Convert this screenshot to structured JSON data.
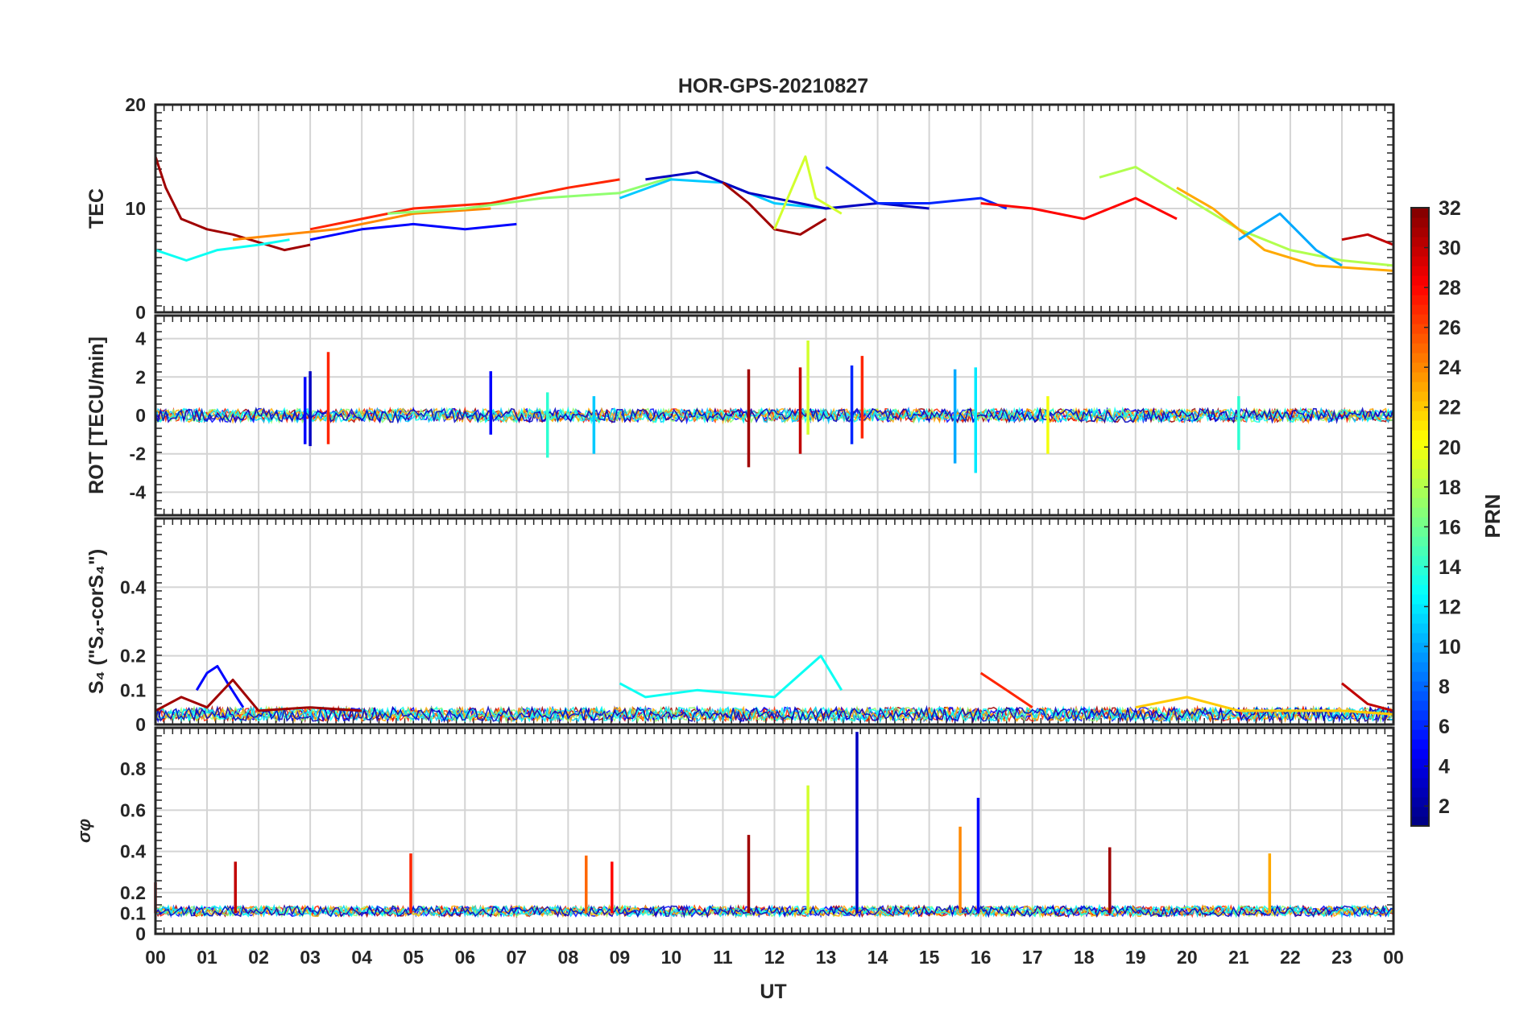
{
  "chart_data": {
    "type": "line",
    "title": "HOR-GPS-20210827",
    "xlabel": "UT",
    "x_tick_labels": [
      "00",
      "01",
      "02",
      "03",
      "04",
      "05",
      "06",
      "07",
      "08",
      "09",
      "10",
      "11",
      "12",
      "13",
      "14",
      "15",
      "16",
      "17",
      "18",
      "19",
      "20",
      "21",
      "22",
      "23",
      "00"
    ],
    "xlim": [
      0,
      24
    ],
    "panels": [
      {
        "id": "tec",
        "ylabel": "TEC",
        "ylim": [
          0,
          20
        ],
        "yticks": [
          0,
          10,
          20
        ],
        "ytick_labels": [
          "0",
          "10",
          "20"
        ],
        "series": [
          {
            "name": "PRN 31",
            "prn": 31,
            "points": [
              [
                0.0,
                15
              ],
              [
                0.2,
                12
              ],
              [
                0.5,
                9
              ],
              [
                1.0,
                8
              ],
              [
                1.5,
                7.5
              ],
              [
                2.5,
                6
              ],
              [
                3.0,
                6.5
              ]
            ]
          },
          {
            "name": "PRN 24",
            "prn": 24,
            "points": [
              [
                1.5,
                7
              ],
              [
                2.5,
                7.5
              ],
              [
                3.5,
                8
              ],
              [
                5.0,
                9.5
              ],
              [
                6.5,
                10
              ]
            ]
          },
          {
            "name": "PRN 13",
            "prn": 13,
            "points": [
              [
                0.0,
                6
              ],
              [
                0.6,
                5
              ],
              [
                1.2,
                6
              ],
              [
                2.0,
                6.5
              ],
              [
                2.6,
                7
              ]
            ]
          },
          {
            "name": "PRN 5",
            "prn": 5,
            "points": [
              [
                3.0,
                7
              ],
              [
                4.0,
                8
              ],
              [
                5.0,
                8.5
              ],
              [
                6.0,
                8
              ],
              [
                7.0,
                8.5
              ]
            ]
          },
          {
            "name": "PRN 27",
            "prn": 27,
            "points": [
              [
                3.0,
                8
              ],
              [
                4.0,
                9
              ],
              [
                5.0,
                10
              ],
              [
                6.5,
                10.5
              ],
              [
                8.0,
                12
              ],
              [
                9.0,
                12.8
              ]
            ]
          },
          {
            "name": "PRN 17",
            "prn": 17,
            "points": [
              [
                4.5,
                9.5
              ],
              [
                6.0,
                10
              ],
              [
                7.5,
                11
              ],
              [
                9.0,
                11.5
              ],
              [
                10.0,
                13
              ]
            ]
          },
          {
            "name": "PRN 11",
            "prn": 11,
            "points": [
              [
                9.0,
                11
              ],
              [
                10.0,
                12.8
              ],
              [
                11.0,
                12.5
              ],
              [
                12.0,
                10.5
              ],
              [
                13.0,
                10
              ]
            ]
          },
          {
            "name": "PRN 3",
            "prn": 3,
            "points": [
              [
                9.5,
                12.8
              ],
              [
                10.5,
                13.5
              ],
              [
                11.5,
                11.5
              ],
              [
                13.0,
                10
              ],
              [
                14.0,
                10.5
              ],
              [
                15.0,
                10
              ]
            ]
          },
          {
            "name": "PRN 31",
            "prn": 31,
            "points": [
              [
                11.0,
                12.5
              ],
              [
                11.5,
                10.5
              ],
              [
                12.0,
                8
              ],
              [
                12.5,
                7.5
              ],
              [
                13.0,
                9
              ]
            ]
          },
          {
            "name": "PRN 19",
            "prn": 19,
            "points": [
              [
                12.0,
                8
              ],
              [
                12.6,
                15
              ],
              [
                12.8,
                11
              ],
              [
                13.3,
                9.5
              ]
            ]
          },
          {
            "name": "PRN 6",
            "prn": 6,
            "points": [
              [
                13.0,
                14
              ],
              [
                14.0,
                10.5
              ],
              [
                15.0,
                10.5
              ],
              [
                16.0,
                11
              ],
              [
                16.5,
                10
              ]
            ]
          },
          {
            "name": "PRN 28",
            "prn": 28,
            "points": [
              [
                16.0,
                10.5
              ],
              [
                17.0,
                10
              ],
              [
                18.0,
                9
              ],
              [
                19.0,
                11
              ],
              [
                19.8,
                9
              ]
            ]
          },
          {
            "name": "PRN 18",
            "prn": 18,
            "points": [
              [
                18.3,
                13
              ],
              [
                19.0,
                14
              ],
              [
                20.0,
                11
              ],
              [
                21.0,
                8
              ],
              [
                22.0,
                6
              ],
              [
                23.0,
                5
              ],
              [
                24.0,
                4.5
              ]
            ]
          },
          {
            "name": "PRN 23",
            "prn": 23,
            "points": [
              [
                19.8,
                12
              ],
              [
                20.5,
                10
              ],
              [
                21.5,
                6
              ],
              [
                22.5,
                4.5
              ],
              [
                24.0,
                4
              ]
            ]
          },
          {
            "name": "PRN 10",
            "prn": 10,
            "points": [
              [
                21.0,
                7
              ],
              [
                21.8,
                9.5
              ],
              [
                22.5,
                6
              ],
              [
                23.0,
                4.5
              ]
            ]
          },
          {
            "name": "PRN 30",
            "prn": 30,
            "points": [
              [
                23.0,
                7
              ],
              [
                23.5,
                7.5
              ],
              [
                24.0,
                6.5
              ]
            ]
          }
        ]
      },
      {
        "id": "rot",
        "ylabel": "ROT [TECU/min]",
        "ylim": [
          -5.2,
          5.2
        ],
        "yticks": [
          -4,
          -2,
          0,
          2,
          4
        ],
        "ytick_labels": [
          "-4",
          "-2",
          "0",
          "2",
          "4"
        ],
        "spikes": [
          {
            "x": 2.9,
            "low": -1.5,
            "high": 2.0,
            "prn": 5
          },
          {
            "x": 3.0,
            "low": -1.6,
            "high": 2.3,
            "prn": 3
          },
          {
            "x": 3.35,
            "low": -1.5,
            "high": 3.3,
            "prn": 27
          },
          {
            "x": 6.5,
            "low": -1.0,
            "high": 2.3,
            "prn": 5
          },
          {
            "x": 7.6,
            "low": -2.2,
            "high": 1.2,
            "prn": 14
          },
          {
            "x": 8.5,
            "low": -2.0,
            "high": 1.0,
            "prn": 11
          },
          {
            "x": 11.5,
            "low": -2.7,
            "high": 2.4,
            "prn": 31
          },
          {
            "x": 12.5,
            "low": -2.0,
            "high": 2.5,
            "prn": 30
          },
          {
            "x": 12.65,
            "low": -1.0,
            "high": 3.9,
            "prn": 19
          },
          {
            "x": 13.5,
            "low": -1.5,
            "high": 2.6,
            "prn": 6
          },
          {
            "x": 13.7,
            "low": -1.2,
            "high": 3.1,
            "prn": 27
          },
          {
            "x": 15.5,
            "low": -2.5,
            "high": 2.4,
            "prn": 10
          },
          {
            "x": 15.9,
            "low": -3.0,
            "high": 2.5,
            "prn": 12
          },
          {
            "x": 17.3,
            "low": -2.0,
            "high": 1.0,
            "prn": 20
          },
          {
            "x": 21.0,
            "low": -1.8,
            "high": 1.0,
            "prn": 14
          }
        ]
      },
      {
        "id": "s4",
        "ylabel": "S₄ (\"S₄-corS₄\")",
        "ylim": [
          0,
          0.6
        ],
        "yticks": [
          0,
          0.1,
          0.2,
          0.4
        ],
        "ytick_labels": [
          "0",
          "0.1",
          "0.2",
          "0.4"
        ],
        "series": [
          {
            "name": "PRN 5",
            "prn": 5,
            "points": [
              [
                0.8,
                0.1
              ],
              [
                1.0,
                0.15
              ],
              [
                1.2,
                0.17
              ],
              [
                1.4,
                0.12
              ],
              [
                1.7,
                0.05
              ]
            ]
          },
          {
            "name": "PRN 31",
            "prn": 31,
            "points": [
              [
                0.0,
                0.04
              ],
              [
                0.5,
                0.08
              ],
              [
                1.0,
                0.05
              ],
              [
                1.5,
                0.13
              ],
              [
                2.0,
                0.04
              ],
              [
                3.0,
                0.05
              ],
              [
                4.0,
                0.04
              ]
            ]
          },
          {
            "name": "PRN 13",
            "prn": 13,
            "points": [
              [
                9.0,
                0.12
              ],
              [
                9.5,
                0.08
              ],
              [
                10.5,
                0.1
              ],
              [
                12.0,
                0.08
              ],
              [
                12.9,
                0.2
              ],
              [
                13.3,
                0.1
              ]
            ]
          },
          {
            "name": "PRN 27",
            "prn": 27,
            "points": [
              [
                16.0,
                0.15
              ],
              [
                16.5,
                0.1
              ],
              [
                17.0,
                0.05
              ]
            ]
          },
          {
            "name": "PRN 22",
            "prn": 22,
            "points": [
              [
                19.0,
                0.05
              ],
              [
                20.0,
                0.08
              ],
              [
                21.0,
                0.04
              ],
              [
                23.0,
                0.04
              ],
              [
                24.0,
                0.03
              ]
            ]
          },
          {
            "name": "PRN 30",
            "prn": 30,
            "points": [
              [
                23.0,
                0.12
              ],
              [
                23.5,
                0.06
              ],
              [
                24.0,
                0.04
              ]
            ]
          }
        ]
      },
      {
        "id": "sigma_phi",
        "ylabel": "σφ",
        "ylim": [
          0,
          1.0
        ],
        "yticks": [
          0,
          0.1,
          0.2,
          0.4,
          0.6,
          0.8
        ],
        "ytick_labels": [
          "0",
          "0.1",
          "0.2",
          "0.4",
          "0.6",
          "0.8"
        ],
        "spikes": [
          {
            "x": 0.0,
            "low": 0.1,
            "high": 0.25,
            "prn": 31
          },
          {
            "x": 1.55,
            "low": 0.1,
            "high": 0.35,
            "prn": 30
          },
          {
            "x": 4.95,
            "low": 0.1,
            "high": 0.39,
            "prn": 27
          },
          {
            "x": 8.35,
            "low": 0.1,
            "high": 0.38,
            "prn": 25
          },
          {
            "x": 8.85,
            "low": 0.1,
            "high": 0.35,
            "prn": 28
          },
          {
            "x": 11.5,
            "low": 0.1,
            "high": 0.48,
            "prn": 31
          },
          {
            "x": 12.65,
            "low": 0.1,
            "high": 0.72,
            "prn": 19
          },
          {
            "x": 13.6,
            "low": 0.1,
            "high": 0.98,
            "prn": 3
          },
          {
            "x": 15.6,
            "low": 0.1,
            "high": 0.52,
            "prn": 24
          },
          {
            "x": 15.95,
            "low": 0.1,
            "high": 0.66,
            "prn": 5
          },
          {
            "x": 18.5,
            "low": 0.1,
            "high": 0.42,
            "prn": 31
          },
          {
            "x": 21.6,
            "low": 0.1,
            "high": 0.39,
            "prn": 23
          }
        ]
      }
    ],
    "colorbar": {
      "label": "PRN",
      "range": [
        1,
        32
      ],
      "tick_labels": [
        "2",
        "4",
        "6",
        "8",
        "10",
        "12",
        "14",
        "16",
        "18",
        "20",
        "22",
        "24",
        "26",
        "28",
        "30",
        "32"
      ],
      "colormap": "jet"
    }
  }
}
